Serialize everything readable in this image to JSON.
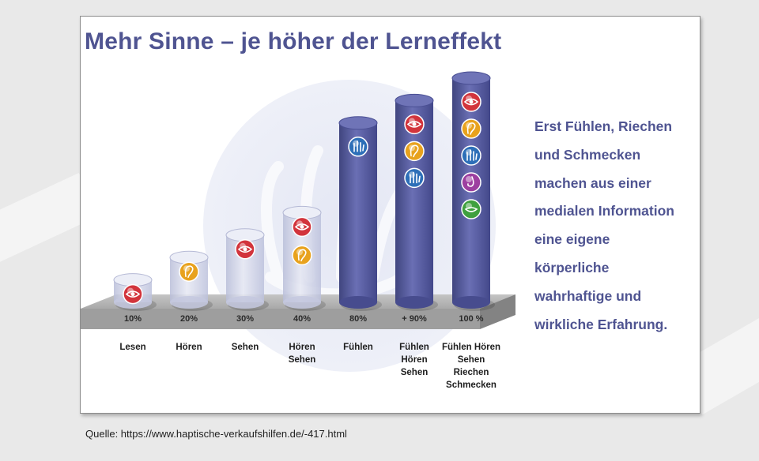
{
  "slide": {
    "title": "Mehr Sinne – je höher der Lerneffekt",
    "side_lines": [
      "Erst Fühlen, Riechen",
      "und Schmecken",
      "machen aus einer",
      "medialen Information",
      "eine eigene",
      "körperliche",
      "wahrhaftige und",
      "wirkliche  Erfahrung."
    ]
  },
  "footer": {
    "source": "Quelle:  https://www.haptische-verkaufshilfen.de/-417.html"
  },
  "colors": {
    "title": "#4f5491",
    "column_dark": "#5559a0",
    "column_light": "#c9cde3",
    "platform": "#a5a5a5",
    "eye": "#d2343c",
    "ear": "#e8a21d",
    "hand": "#2d6fb8",
    "nose": "#9d3fa0",
    "mouth": "#3fa03f"
  },
  "chart_data": {
    "type": "bar",
    "title": "Mehr Sinne – je höher der Lerneffekt",
    "xlabel": "",
    "ylabel": "",
    "ylim": [
      0,
      100
    ],
    "grid": false,
    "categories": [
      [
        "Lesen"
      ],
      [
        "Hören"
      ],
      [
        "Sehen"
      ],
      [
        "Hören",
        "Sehen"
      ],
      [
        "Fühlen"
      ],
      [
        "Fühlen",
        "Hören",
        "Sehen"
      ],
      [
        "Fühlen Hören",
        "Sehen",
        "Riechen",
        "Schmecken"
      ]
    ],
    "values": [
      10,
      20,
      30,
      40,
      80,
      90,
      100
    ],
    "value_labels": [
      "10%",
      "20%",
      "30%",
      "40%",
      "80%",
      "+ 90%",
      "100 %"
    ],
    "icons": [
      [
        "eye-icon"
      ],
      [
        "ear-icon"
      ],
      [
        "eye-icon"
      ],
      [
        "eye-icon",
        "ear-icon"
      ],
      [
        "hand-icon"
      ],
      [
        "eye-icon",
        "ear-icon",
        "hand-icon"
      ],
      [
        "eye-icon",
        "ear-icon",
        "hand-icon",
        "nose-icon",
        "mouth-icon"
      ]
    ]
  }
}
